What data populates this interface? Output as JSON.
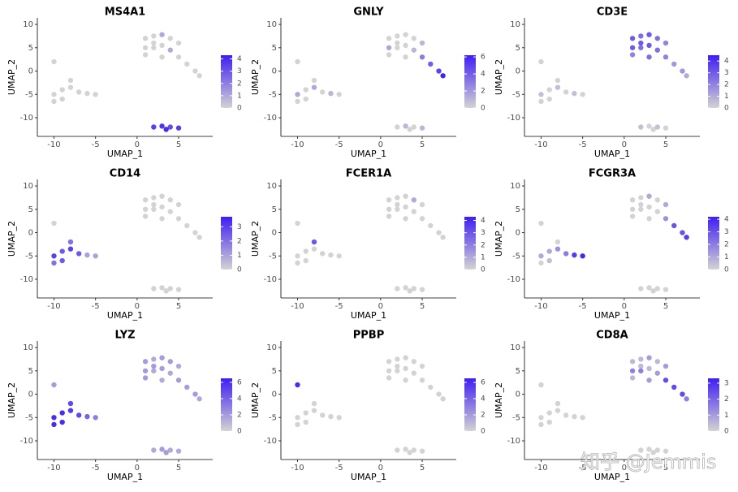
{
  "watermark": "知乎 @Jemmis",
  "chart_data": [
    {
      "type": "scatter",
      "title": "MS4A1",
      "xlabel": "UMAP_1",
      "ylabel": "UMAP_2",
      "xlim": [
        -12,
        9.1
      ],
      "ylim": [
        -14,
        11.4
      ],
      "xticks": [
        -10,
        -5,
        0,
        5
      ],
      "yticks": [
        -10,
        -5,
        0,
        5,
        10
      ],
      "clim": [
        0,
        4.3
      ],
      "cticks": [
        0,
        1,
        2,
        3,
        4
      ],
      "colors": [
        "#d3d3d3",
        "#3f1ef2"
      ],
      "x": [
        1,
        2,
        3,
        4,
        5,
        1,
        2,
        3,
        4,
        5,
        6,
        7,
        7.5,
        3,
        1,
        2,
        -10,
        -9,
        -8,
        -7,
        -6,
        -5,
        -9,
        -8,
        -10,
        -10,
        2,
        3,
        4,
        5,
        3.5
      ],
      "y": [
        7,
        7.5,
        7.8,
        7,
        6,
        5,
        5,
        5.5,
        4.5,
        3,
        1.5,
        0,
        -1,
        3,
        3.5,
        6,
        -5,
        -4,
        -3.5,
        -4.5,
        -4.8,
        -5,
        -6,
        -2,
        -6.5,
        2,
        -12,
        -11.8,
        -12,
        -12.2,
        -12.5
      ],
      "values": [
        0,
        0,
        1,
        0,
        0,
        0,
        0,
        0,
        1,
        0,
        0,
        0,
        0,
        0,
        0,
        0,
        0,
        0,
        0,
        0,
        0,
        0,
        0,
        0,
        0,
        0,
        3.5,
        3.8,
        3.2,
        3.6,
        4
      ]
    },
    {
      "type": "scatter",
      "title": "GNLY",
      "xlabel": "UMAP_1",
      "ylabel": "UMAP_2",
      "xlim": [
        -12,
        9.1
      ],
      "ylim": [
        -14,
        11.4
      ],
      "xticks": [
        -10,
        -5,
        0,
        5
      ],
      "yticks": [
        -10,
        -5,
        0,
        5,
        10
      ],
      "clim": [
        0,
        6.2
      ],
      "cticks": [
        0,
        2,
        4,
        6
      ],
      "colors": [
        "#d3d3d3",
        "#3f1ef2"
      ],
      "x": [
        1,
        2,
        3,
        4,
        5,
        1,
        2,
        3,
        4,
        5,
        6,
        7,
        7.5,
        3,
        1,
        2,
        -10,
        -9,
        -8,
        -7,
        -6,
        -5,
        -9,
        -8,
        -10,
        -10,
        2,
        3,
        4,
        5,
        3.5
      ],
      "y": [
        7,
        7.5,
        7.8,
        7,
        6,
        5,
        5,
        5.5,
        4.5,
        3,
        1.5,
        0,
        -1,
        3,
        3.5,
        6,
        -5,
        -4,
        -3.5,
        -4.5,
        -4.8,
        -5,
        -6,
        -2,
        -6.5,
        2,
        -12,
        -11.8,
        -12,
        -12.2,
        -12.5
      ],
      "values": [
        0,
        0,
        0,
        0,
        1,
        1.5,
        0,
        0,
        1,
        3,
        4,
        5,
        6,
        0,
        0,
        0,
        1.5,
        0,
        1.5,
        0,
        1,
        0,
        0,
        0,
        0,
        0,
        0,
        1,
        0,
        1,
        0
      ]
    },
    {
      "type": "scatter",
      "title": "CD3E",
      "xlabel": "UMAP_1",
      "ylabel": "UMAP_2",
      "xlim": [
        -12,
        9.1
      ],
      "ylim": [
        -14,
        11.4
      ],
      "xticks": [
        -10,
        -5,
        0,
        5
      ],
      "yticks": [
        -10,
        -5,
        0,
        5,
        10
      ],
      "clim": [
        0,
        4.5
      ],
      "cticks": [
        0,
        1,
        2,
        3,
        4
      ],
      "colors": [
        "#d3d3d3",
        "#3f1ef2"
      ],
      "x": [
        1,
        2,
        3,
        4,
        5,
        1,
        2,
        3,
        4,
        5,
        6,
        7,
        7.5,
        3,
        1,
        2,
        -10,
        -9,
        -8,
        -7,
        -6,
        -5,
        -9,
        -8,
        -10,
        -10,
        2,
        3,
        4,
        5,
        3.5
      ],
      "y": [
        7,
        7.5,
        7.8,
        7,
        6,
        5,
        5,
        5.5,
        4.5,
        3,
        1.5,
        0,
        -1,
        3,
        3.5,
        6,
        -5,
        -4,
        -3.5,
        -4.5,
        -4.8,
        -5,
        -6,
        -2,
        -6.5,
        2,
        -12,
        -11.8,
        -12,
        -12.2,
        -12.5
      ],
      "values": [
        3,
        2.5,
        3,
        2.5,
        2,
        3,
        2.5,
        3,
        2.5,
        2,
        1.5,
        1.5,
        1,
        2.5,
        2,
        3,
        0.5,
        0,
        0.5,
        0,
        0.5,
        0,
        0,
        0,
        0,
        0,
        0.5,
        0,
        0.5,
        0,
        0
      ]
    },
    {
      "type": "scatter",
      "title": "CD14",
      "xlabel": "UMAP_1",
      "ylabel": "UMAP_2",
      "xlim": [
        -12,
        9.1
      ],
      "ylim": [
        -14,
        11.4
      ],
      "xticks": [
        -10,
        -5,
        0,
        5
      ],
      "yticks": [
        -10,
        -5,
        0,
        5,
        10
      ],
      "clim": [
        0,
        3.7
      ],
      "cticks": [
        0,
        1,
        2,
        3
      ],
      "colors": [
        "#d3d3d3",
        "#3f1ef2"
      ],
      "x": [
        1,
        2,
        3,
        4,
        5,
        1,
        2,
        3,
        4,
        5,
        6,
        7,
        7.5,
        3,
        1,
        2,
        -10,
        -9,
        -8,
        -7,
        -6,
        -5,
        -9,
        -8,
        -10,
        -10,
        2,
        3,
        4,
        5,
        3.5
      ],
      "y": [
        7,
        7.5,
        7.8,
        7,
        6,
        5,
        5,
        5.5,
        4.5,
        3,
        1.5,
        0,
        -1,
        3,
        3.5,
        6,
        -5,
        -4,
        -3.5,
        -4.5,
        -4.8,
        -5,
        -6,
        -2,
        -6.5,
        2,
        -12,
        -11.8,
        -12,
        -12.2,
        -12.5
      ],
      "values": [
        0,
        0,
        0,
        0,
        0,
        0,
        0,
        0,
        0,
        0,
        0,
        0,
        0,
        0,
        0,
        0,
        3,
        2.5,
        3,
        2.5,
        1,
        1,
        2.5,
        2,
        2,
        0,
        0,
        0,
        0,
        0,
        0
      ]
    },
    {
      "type": "scatter",
      "title": "FCER1A",
      "xlabel": "UMAP_1",
      "ylabel": "UMAP_2",
      "xlim": [
        -12,
        9.1
      ],
      "ylim": [
        -14,
        11.4
      ],
      "xticks": [
        -10,
        -5,
        0,
        5
      ],
      "yticks": [
        -10,
        -5,
        0,
        5,
        10
      ],
      "clim": [
        0,
        4.3
      ],
      "cticks": [
        0,
        1,
        2,
        3,
        4
      ],
      "colors": [
        "#d3d3d3",
        "#3f1ef2"
      ],
      "x": [
        1,
        2,
        3,
        4,
        5,
        1,
        2,
        3,
        4,
        5,
        6,
        7,
        7.5,
        3,
        1,
        2,
        -10,
        -9,
        -8,
        -7,
        -6,
        -5,
        -9,
        -8,
        -10,
        -10,
        2,
        3,
        4,
        5,
        3.5
      ],
      "y": [
        7,
        7.5,
        7.8,
        7,
        6,
        5,
        5,
        5.5,
        4.5,
        3,
        1.5,
        0,
        -1,
        3,
        3.5,
        6,
        -5,
        -4,
        -3.5,
        -4.5,
        -4.8,
        -5,
        -6,
        -2,
        -6.5,
        2,
        -12,
        -11.8,
        -12,
        -12.2,
        -12.5
      ],
      "values": [
        0,
        0,
        0,
        1,
        0,
        0,
        0,
        0,
        0,
        0,
        0,
        0,
        0,
        0,
        0,
        0,
        0,
        0,
        0,
        0,
        0,
        0,
        0,
        3,
        0,
        0,
        0,
        0,
        0,
        0,
        0
      ]
    },
    {
      "type": "scatter",
      "title": "FCGR3A",
      "xlabel": "UMAP_1",
      "ylabel": "UMAP_2",
      "xlim": [
        -12,
        9.1
      ],
      "ylim": [
        -14,
        11.4
      ],
      "xticks": [
        -10,
        -5,
        0,
        5
      ],
      "yticks": [
        -10,
        -5,
        0,
        5,
        10
      ],
      "clim": [
        0,
        4.2
      ],
      "cticks": [
        0,
        1,
        2,
        3,
        4
      ],
      "colors": [
        "#d3d3d3",
        "#3f1ef2"
      ],
      "x": [
        1,
        2,
        3,
        4,
        5,
        1,
        2,
        3,
        4,
        5,
        6,
        7,
        7.5,
        3,
        1,
        2,
        -10,
        -9,
        -8,
        -7,
        -6,
        -5,
        -9,
        -8,
        -10,
        -10,
        2,
        3,
        4,
        5,
        3.5
      ],
      "y": [
        7,
        7.5,
        7.8,
        7,
        6,
        5,
        5,
        5.5,
        4.5,
        3,
        1.5,
        0,
        -1,
        3,
        3.5,
        6,
        -5,
        -4,
        -3.5,
        -4.5,
        -4.8,
        -5,
        -6,
        -2,
        -6.5,
        2,
        -12,
        -11.8,
        -12,
        -12.2,
        -12.5
      ],
      "values": [
        0,
        0,
        1,
        0,
        1,
        0,
        0,
        0,
        0,
        1.5,
        3,
        3,
        3.5,
        0,
        0,
        0,
        1,
        1,
        1.5,
        2,
        3.5,
        4,
        0.5,
        0,
        0,
        0,
        0,
        0,
        0,
        0,
        0
      ]
    },
    {
      "type": "scatter",
      "title": "LYZ",
      "xlabel": "UMAP_1",
      "ylabel": "UMAP_2",
      "xlim": [
        -12,
        9.1
      ],
      "ylim": [
        -14,
        11.4
      ],
      "xticks": [
        -10,
        -5,
        0,
        5
      ],
      "yticks": [
        -10,
        -5,
        0,
        5,
        10
      ],
      "clim": [
        0,
        6.5
      ],
      "cticks": [
        0,
        2,
        4,
        6
      ],
      "colors": [
        "#d3d3d3",
        "#3f1ef2"
      ],
      "x": [
        1,
        2,
        3,
        4,
        5,
        1,
        2,
        3,
        4,
        5,
        6,
        7,
        7.5,
        3,
        1,
        2,
        -10,
        -9,
        -8,
        -7,
        -6,
        -5,
        -9,
        -8,
        -10,
        -10,
        2,
        3,
        4,
        5,
        3.5
      ],
      "y": [
        7,
        7.5,
        7.8,
        7,
        6,
        5,
        5,
        5.5,
        4.5,
        3,
        1.5,
        0,
        -1,
        3,
        3.5,
        6,
        -5,
        -4,
        -3.5,
        -4.5,
        -4.8,
        -5,
        -6,
        -2,
        -6.5,
        2,
        -12,
        -11.8,
        -12,
        -12.2,
        -12.5
      ],
      "values": [
        2,
        1.5,
        2,
        2,
        1.5,
        2,
        1.5,
        2,
        1.5,
        2,
        2,
        2,
        1.5,
        1.5,
        2,
        2,
        6,
        6,
        5.5,
        5,
        4,
        3,
        6,
        5,
        6,
        2,
        1.5,
        2,
        1.5,
        1.5,
        2
      ]
    },
    {
      "type": "scatter",
      "title": "PPBP",
      "xlabel": "UMAP_1",
      "ylabel": "UMAP_2",
      "xlim": [
        -12,
        9.1
      ],
      "ylim": [
        -14,
        11.4
      ],
      "xticks": [
        -10,
        -5,
        0,
        5
      ],
      "yticks": [
        -10,
        -5,
        0,
        5,
        10
      ],
      "clim": [
        0,
        6.5
      ],
      "cticks": [
        0,
        2,
        4,
        6
      ],
      "colors": [
        "#d3d3d3",
        "#3f1ef2"
      ],
      "x": [
        1,
        2,
        3,
        4,
        5,
        1,
        2,
        3,
        4,
        5,
        6,
        7,
        7.5,
        3,
        1,
        2,
        -10,
        -9,
        -8,
        -7,
        -6,
        -5,
        -9,
        -8,
        -10,
        -10,
        2,
        3,
        4,
        5,
        3.5
      ],
      "y": [
        7,
        7.5,
        7.8,
        7,
        6,
        5,
        5,
        5.5,
        4.5,
        3,
        1.5,
        0,
        -1,
        3,
        3.5,
        6,
        -5,
        -4,
        -3.5,
        -4.5,
        -4.8,
        -5,
        -6,
        -2,
        -6.5,
        2,
        -12,
        -11.8,
        -12,
        -12.2,
        -12.5
      ],
      "values": [
        0,
        0,
        0,
        0,
        0,
        0,
        0,
        0,
        0,
        0,
        0,
        0,
        0,
        0,
        0,
        0,
        0,
        0,
        0,
        0,
        0,
        0,
        0,
        0,
        0,
        6,
        0,
        0,
        0,
        0,
        0
      ]
    },
    {
      "type": "scatter",
      "title": "CD8A",
      "xlabel": "UMAP_1",
      "ylabel": "UMAP_2",
      "xlim": [
        -12,
        9.1
      ],
      "ylim": [
        -14,
        11.4
      ],
      "xticks": [
        -10,
        -5,
        0,
        5
      ],
      "yticks": [
        -10,
        -5,
        0,
        5,
        10
      ],
      "clim": [
        0,
        3.3
      ],
      "cticks": [
        0,
        1,
        2,
        3
      ],
      "colors": [
        "#d3d3d3",
        "#3f1ef2"
      ],
      "x": [
        1,
        2,
        3,
        4,
        5,
        1,
        2,
        3,
        4,
        5,
        6,
        7,
        7.5,
        3,
        1,
        2,
        -10,
        -9,
        -8,
        -7,
        -6,
        -5,
        -9,
        -8,
        -10,
        -10,
        2,
        3,
        4,
        5,
        3.5
      ],
      "y": [
        7,
        7.5,
        7.8,
        7,
        6,
        5,
        5,
        5.5,
        4.5,
        3,
        1.5,
        0,
        -1,
        3,
        3.5,
        6,
        -5,
        -4,
        -3.5,
        -4.5,
        -4.8,
        -5,
        -6,
        -2,
        -6.5,
        2,
        -12,
        -11.8,
        -12,
        -12.2,
        -12.5
      ],
      "values": [
        0.5,
        0.5,
        1,
        0.5,
        1,
        1.5,
        1.5,
        0.5,
        1,
        2.5,
        2.5,
        2.5,
        1.5,
        1,
        0.5,
        0.5,
        0,
        0,
        0,
        0,
        0,
        0,
        0,
        0,
        0,
        0,
        0,
        0,
        0,
        0,
        0
      ]
    }
  ]
}
